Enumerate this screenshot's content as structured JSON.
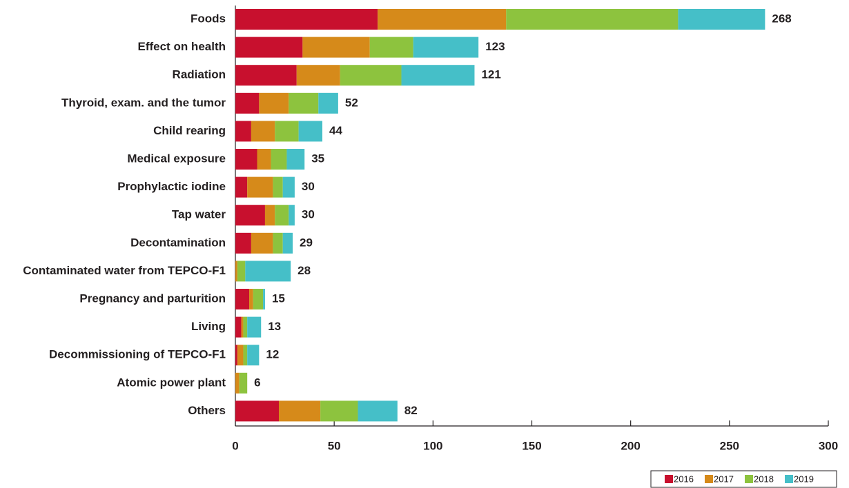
{
  "chart_data": {
    "type": "stacked_bar",
    "orientation": "horizontal",
    "categories": [
      "Foods",
      "Effect on health",
      "Radiation",
      "Thyroid, exam. and the tumor",
      "Child rearing",
      "Medical exposure",
      "Prophylactic iodine",
      "Tap water",
      "Decontamination",
      "Contaminated water from TEPCO-F1",
      "Pregnancy and parturition",
      "Living",
      "Decommissioning of TEPCO-F1",
      "Atomic power plant",
      "Others"
    ],
    "series": [
      {
        "name": "2016",
        "color": "#c8102e",
        "values": [
          72,
          34,
          31,
          12,
          8,
          11,
          6,
          15,
          8,
          0,
          7,
          3,
          1,
          0,
          22
        ]
      },
      {
        "name": "2017",
        "color": "#d68a1a",
        "values": [
          65,
          34,
          22,
          15,
          12,
          7,
          13,
          5,
          11,
          1,
          2,
          1,
          3,
          2,
          21
        ]
      },
      {
        "name": "2018",
        "color": "#8dc33e",
        "values": [
          87,
          22,
          31,
          15,
          12,
          8,
          5,
          7,
          5,
          4,
          5,
          2,
          2,
          4,
          19
        ]
      },
      {
        "name": "2019",
        "color": "#45bfc8",
        "values": [
          44,
          33,
          37,
          10,
          12,
          9,
          6,
          3,
          5,
          23,
          1,
          7,
          6,
          0,
          20
        ]
      }
    ],
    "totals": [
      268,
      123,
      121,
      52,
      44,
      35,
      30,
      30,
      29,
      28,
      15,
      13,
      12,
      6,
      82
    ],
    "xlim": [
      0,
      300
    ],
    "xticks": [
      0,
      50,
      100,
      150,
      200,
      250,
      300
    ]
  }
}
